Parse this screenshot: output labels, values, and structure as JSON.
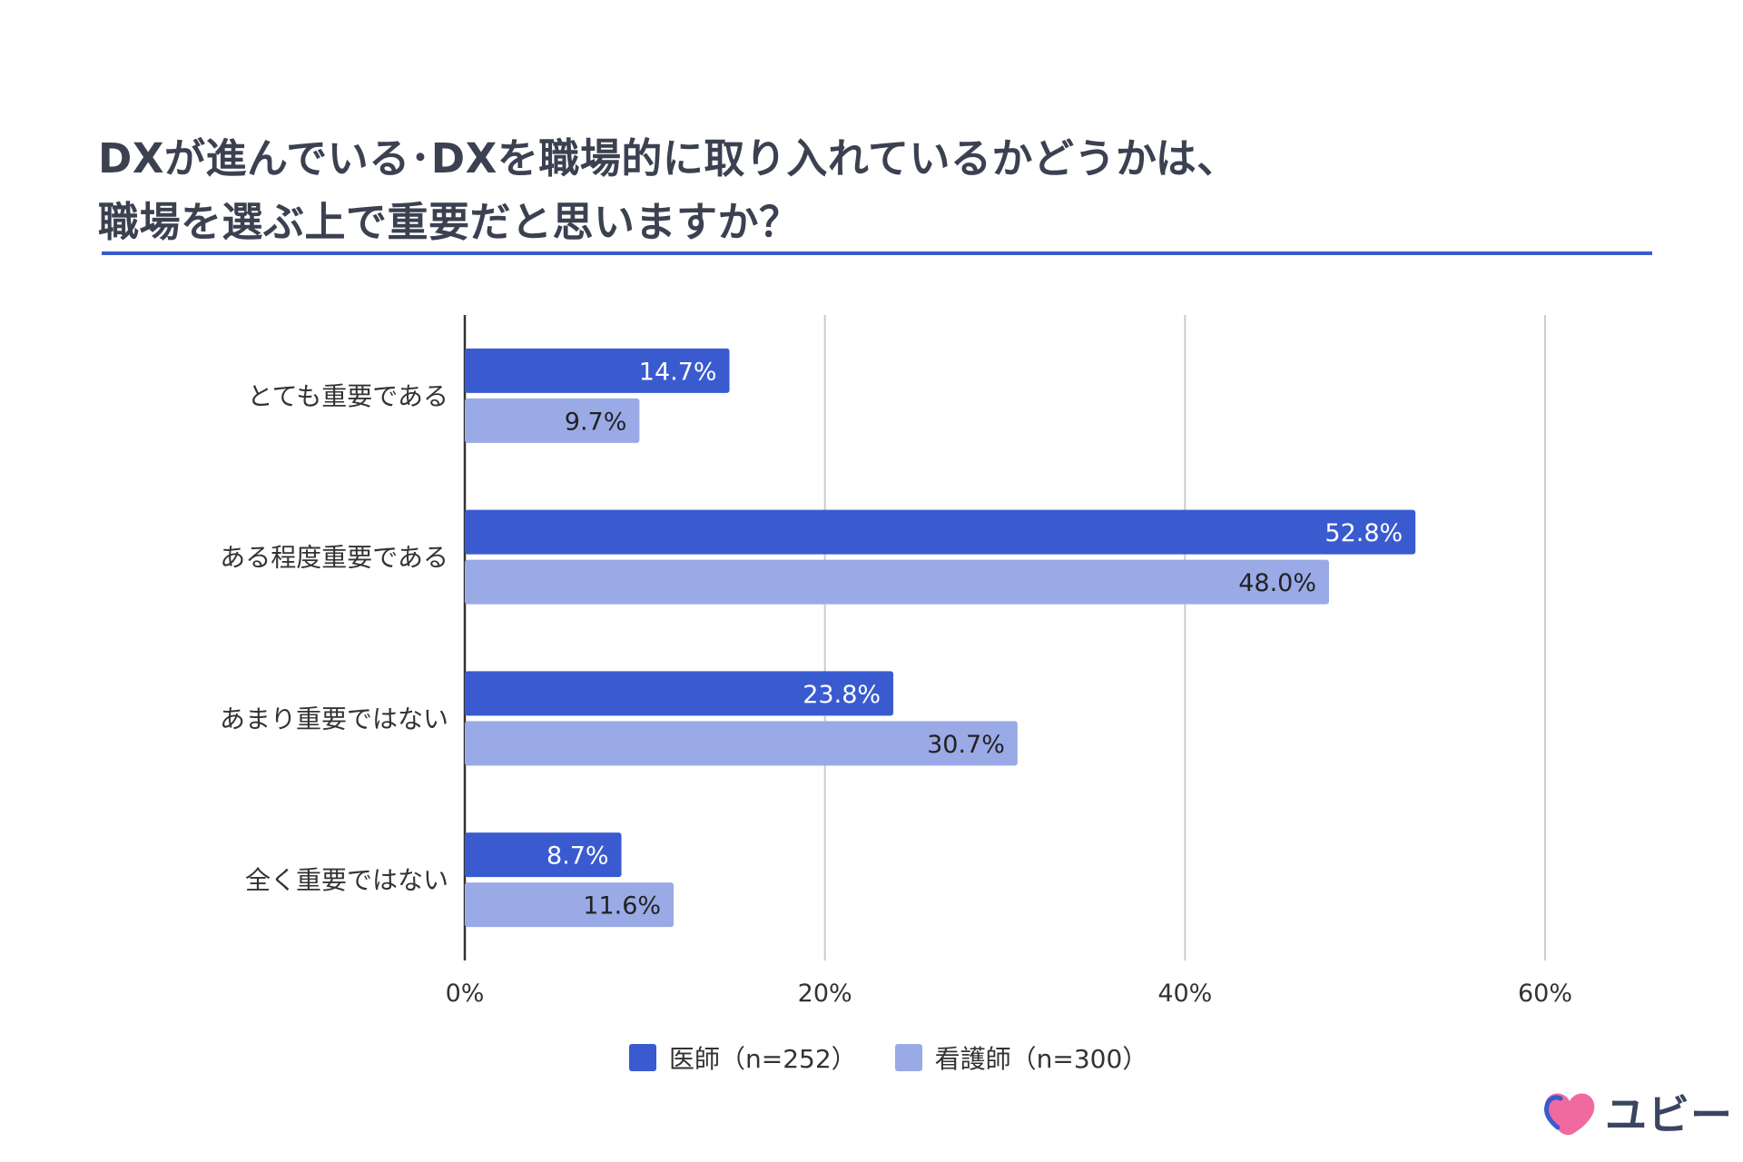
{
  "title": {
    "line1": "DXが進んでいる･DXを職場的に取り入れているかどうかは、",
    "line2": "職場を選ぶ上で重要だと思いますか？"
  },
  "colors": {
    "series1": "#3a5bcf",
    "series2": "#9aaae6",
    "rule": "#3a5bcf",
    "grid": "#cccccc"
  },
  "chart_data": {
    "type": "bar",
    "orientation": "horizontal",
    "categories": [
      "とても重要である",
      "ある程度重要である",
      "あまり重要ではない",
      "全く重要ではない"
    ],
    "series": [
      {
        "name": "医師（n=252）",
        "values": [
          14.7,
          52.8,
          23.8,
          8.7
        ],
        "labels": [
          "14.7%",
          "52.8%",
          "23.8%",
          "8.7%"
        ]
      },
      {
        "name": "看護師（n=300）",
        "values": [
          9.7,
          48.0,
          30.7,
          11.6
        ],
        "labels": [
          "9.7%",
          "48.0%",
          "30.7%",
          "11.6%"
        ]
      }
    ],
    "xlim": [
      0,
      60
    ],
    "xticks": [
      0,
      20,
      40,
      60
    ],
    "xtick_labels": [
      "0%",
      "20%",
      "40%",
      "60%"
    ],
    "grid": true,
    "legend_position": "bottom"
  },
  "logo": {
    "text": "ユビー",
    "icon": "heart-logo-icon"
  }
}
